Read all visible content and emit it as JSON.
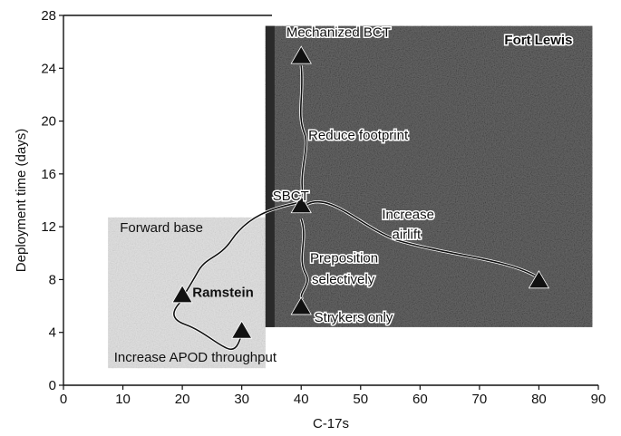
{
  "chart_data": {
    "type": "scatter",
    "title": "",
    "xlabel": "C-17s",
    "ylabel": "Deployment time (days)",
    "xlim": [
      0,
      90
    ],
    "ylim": [
      0,
      28
    ],
    "x_ticks": [
      0,
      10,
      20,
      30,
      40,
      50,
      60,
      70,
      80,
      90
    ],
    "y_ticks": [
      0,
      4,
      8,
      12,
      16,
      20,
      24,
      28
    ],
    "grid": false,
    "legend": "none",
    "marker": "triangle",
    "marker_color": "#111111",
    "points": [
      {
        "x": 20,
        "y": 6.8,
        "label": "Ramstein"
      },
      {
        "x": 30,
        "y": 4.1,
        "label": ""
      },
      {
        "x": 40,
        "y": 24.9,
        "label": "Mechanized BCT"
      },
      {
        "x": 40,
        "y": 13.6,
        "label": "SBCT"
      },
      {
        "x": 40,
        "y": 5.9,
        "label": "Strykers only"
      },
      {
        "x": 80,
        "y": 7.9,
        "label": ""
      }
    ],
    "regions": [
      {
        "name": "Forward base",
        "x": [
          7.5,
          34
        ],
        "y": [
          1.3,
          12.7
        ],
        "shade": "light",
        "color": "#e2e2e2"
      },
      {
        "name": "Fort Lewis",
        "x": [
          34,
          89
        ],
        "y": [
          4.4,
          27.2
        ],
        "shade": "dark",
        "color": "#6c6c6c"
      }
    ],
    "annotations": {
      "mechanized_bct": "Mechanized BCT",
      "fort_lewis": "Fort Lewis",
      "reduce_footprint": "Reduce footprint",
      "sbct": "SBCT",
      "increase": "Increase",
      "airlift": "airlift",
      "preposition": "Preposition",
      "selectively": "selectively",
      "strykers_only": "Strykers only",
      "forward_base": "Forward base",
      "ramstein": "Ramstein",
      "increase_apod": "Increase APOD throughput"
    }
  }
}
